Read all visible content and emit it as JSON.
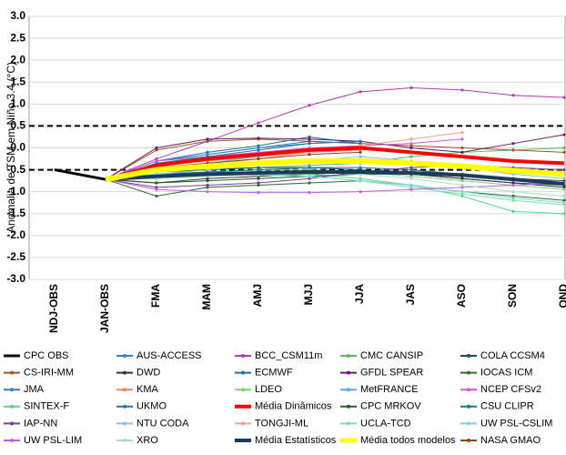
{
  "chart_data": {
    "type": "line",
    "y_label": "Anomalia de TSM em Niño 3.4 (°C)",
    "categories": [
      "NDJ-OBS",
      "JAN-OBS",
      "FMA",
      "MAM",
      "AMJ",
      "MJJ",
      "JJA",
      "JAS",
      "ASO",
      "SON",
      "OND"
    ],
    "ylim": [
      -3.0,
      3.0
    ],
    "yticks": [
      {
        "value": 3,
        "label": "3.0"
      },
      {
        "value": 2.5,
        "label": "2.5"
      },
      {
        "value": 2,
        "label": "2.0"
      },
      {
        "value": 1.5,
        "label": "1.5"
      },
      {
        "value": 1,
        "label": "1.0"
      },
      {
        "value": 0.5,
        "label": "0.5"
      },
      {
        "value": 0,
        "label": "0.0"
      },
      {
        "value": -0.5,
        "label": "-0.5"
      },
      {
        "value": -1,
        "label": "-1.0"
      },
      {
        "value": -1.5,
        "label": "-1.5"
      },
      {
        "value": -2,
        "label": "-2.0"
      },
      {
        "value": -2.5,
        "label": "-2.5"
      },
      {
        "value": -3,
        "label": "-3.0"
      }
    ],
    "grid": true,
    "reference_lines": [
      0.5,
      -0.5
    ],
    "series": [
      {
        "name": "CPC OBS",
        "color": "#000000",
        "width": 3,
        "values": [
          -0.5,
          -0.72,
          null,
          null,
          null,
          null,
          null,
          null,
          null,
          null,
          null
        ]
      },
      {
        "name": "AUS-ACCESS",
        "color": "#2e86c1",
        "width": 1,
        "values": [
          null,
          -0.72,
          -0.3,
          -0.15,
          0.0,
          0.15,
          0.1,
          null,
          null,
          null,
          null
        ]
      },
      {
        "name": "BCC_CSM11m",
        "color": "#b03cb0",
        "width": 1,
        "values": [
          null,
          -0.72,
          -0.25,
          0.15,
          0.57,
          0.97,
          1.28,
          1.37,
          1.32,
          1.2,
          1.15
        ]
      },
      {
        "name": "CMC CANSIP",
        "color": "#5cb85c",
        "width": 1,
        "values": [
          null,
          -0.72,
          -0.6,
          -0.5,
          -0.45,
          -0.4,
          -0.35,
          -0.2,
          -0.1,
          -0.05,
          0.0
        ]
      },
      {
        "name": "COLA CCSM4",
        "color": "#1f4e5f",
        "width": 1,
        "values": [
          null,
          -0.72,
          -0.55,
          -0.5,
          -0.45,
          -0.45,
          -0.5,
          -0.6,
          -0.7,
          -0.8,
          -0.85
        ]
      },
      {
        "name": "CS-IRI-MM",
        "color": "#a0522d",
        "width": 1,
        "values": [
          null,
          -0.72,
          -0.05,
          0.15,
          0.2,
          0.15,
          0.1,
          0.05,
          0.0,
          -0.05,
          -0.1
        ]
      },
      {
        "name": "DWD",
        "color": "#333333",
        "width": 1,
        "values": [
          null,
          -0.72,
          -0.8,
          -0.7,
          -0.65,
          -0.6,
          -0.55,
          -0.6,
          -0.7,
          -0.8,
          -0.9
        ]
      },
      {
        "name": "ECMWF",
        "color": "#1f6fa8",
        "width": 1,
        "values": [
          null,
          -0.72,
          -0.3,
          -0.1,
          0.05,
          0.25,
          0.1,
          null,
          null,
          null,
          null
        ]
      },
      {
        "name": "GFDL SPEAR",
        "color": "#6a1b6a",
        "width": 1,
        "values": [
          null,
          -0.72,
          0.0,
          0.2,
          0.22,
          0.2,
          0.15,
          0.0,
          -0.1,
          0.1,
          0.3
        ]
      },
      {
        "name": "IOCAS ICM",
        "color": "#2e6b2e",
        "width": 1,
        "values": [
          null,
          -0.72,
          -1.1,
          -0.9,
          -0.85,
          -0.8,
          -0.75,
          -0.85,
          -1.0,
          -1.1,
          -1.2
        ]
      },
      {
        "name": "JMA",
        "color": "#3a7fc1",
        "width": 1,
        "values": [
          null,
          -0.72,
          -0.3,
          -0.15,
          0.0,
          0.1,
          0.15,
          null,
          null,
          null,
          null
        ]
      },
      {
        "name": "KMA",
        "color": "#e8835a",
        "width": 1,
        "values": [
          null,
          -0.72,
          -0.4,
          -0.3,
          -0.2,
          -0.1,
          -0.05,
          null,
          null,
          null,
          null
        ]
      },
      {
        "name": "LDEO",
        "color": "#7fcf7f",
        "width": 1,
        "values": [
          null,
          -0.72,
          -0.6,
          -0.55,
          -0.5,
          -0.5,
          -0.55,
          -0.65,
          -0.75,
          -0.85,
          -0.95
        ]
      },
      {
        "name": "MetFRANCE",
        "color": "#5dade2",
        "width": 1,
        "values": [
          null,
          -0.72,
          -0.5,
          -0.35,
          -0.2,
          -0.05,
          0.05,
          null,
          null,
          null,
          null
        ]
      },
      {
        "name": "NCEP CFSv2",
        "color": "#d35cd3",
        "width": 1,
        "values": [
          null,
          -0.72,
          -0.3,
          -0.2,
          -0.1,
          0.0,
          0.05,
          0.1,
          0.2,
          null,
          null
        ]
      },
      {
        "name": "SINTEX-F",
        "color": "#58d68d",
        "width": 1,
        "values": [
          null,
          -0.72,
          -0.7,
          -0.65,
          -0.6,
          -0.6,
          -0.7,
          -0.85,
          -1.1,
          -1.45,
          -1.5
        ]
      },
      {
        "name": "UKMO",
        "color": "#2874a6",
        "width": 1,
        "values": [
          null,
          -0.72,
          -0.35,
          -0.2,
          -0.05,
          0.1,
          0.15,
          null,
          null,
          null,
          null
        ]
      },
      {
        "name": "Média Dinâmicos",
        "color": "#ff0000",
        "width": 4,
        "values": [
          null,
          -0.72,
          -0.4,
          -0.25,
          -0.15,
          -0.05,
          0.0,
          -0.1,
          -0.2,
          -0.3,
          -0.35
        ]
      },
      {
        "name": "CPC MRKOV",
        "color": "#1e5e1e",
        "width": 1,
        "values": [
          null,
          -0.72,
          -0.8,
          -0.75,
          -0.7,
          -0.65,
          -0.6,
          -0.6,
          -0.65,
          -0.7,
          -0.75
        ]
      },
      {
        "name": "CSU CLIPR",
        "color": "#117a8b",
        "width": 1,
        "values": [
          null,
          -0.72,
          -0.6,
          -0.55,
          -0.5,
          -0.45,
          -0.45,
          -0.5,
          -0.6,
          -0.7,
          -0.8
        ]
      },
      {
        "name": "IAP-NN",
        "color": "#7d3c98",
        "width": 1,
        "values": [
          null,
          -0.72,
          -0.9,
          -0.85,
          -0.8,
          -0.7,
          -0.55,
          -0.45,
          -0.4,
          -0.45,
          -0.5
        ]
      },
      {
        "name": "NTU CODA",
        "color": "#85c1e9",
        "width": 1,
        "values": [
          null,
          -0.72,
          -0.6,
          -0.5,
          -0.4,
          -0.3,
          -0.2,
          -0.3,
          -0.45,
          -0.6,
          -0.7
        ]
      },
      {
        "name": "TONGJI-ML",
        "color": "#f5a38a",
        "width": 1,
        "values": [
          null,
          -0.72,
          -0.55,
          -0.4,
          -0.25,
          -0.1,
          0.05,
          0.2,
          0.35,
          null,
          null
        ]
      },
      {
        "name": "UCLA-TCD",
        "color": "#82e0aa",
        "width": 1,
        "values": [
          null,
          -0.72,
          -0.65,
          -0.6,
          -0.6,
          -0.65,
          -0.75,
          -0.9,
          -1.05,
          -1.2,
          -1.3
        ]
      },
      {
        "name": "UW PSL-CSLIM",
        "color": "#76d7ea",
        "width": 1,
        "values": [
          null,
          -0.72,
          -0.6,
          -0.6,
          -0.62,
          -0.65,
          -0.75,
          -0.85,
          -1.0,
          -1.15,
          -1.25
        ]
      },
      {
        "name": "UW PSL-LIM",
        "color": "#c060e0",
        "width": 1,
        "values": [
          null,
          -0.72,
          -0.95,
          -1.0,
          -1.02,
          -1.02,
          -1.0,
          -0.95,
          -0.9,
          -0.85,
          -0.8
        ]
      },
      {
        "name": "XRO",
        "color": "#a9dfbf",
        "width": 1,
        "values": [
          null,
          -0.72,
          -0.7,
          -0.65,
          -0.6,
          -0.55,
          -0.6,
          -0.7,
          -0.85,
          -1.0,
          -1.1
        ]
      },
      {
        "name": "Média Estatísticos",
        "color": "#1b3a5c",
        "width": 4,
        "values": [
          null,
          -0.72,
          -0.65,
          -0.6,
          -0.57,
          -0.55,
          -0.55,
          -0.57,
          -0.62,
          -0.72,
          -0.82
        ]
      },
      {
        "name": "Média todos  modelos",
        "color": "#ffff00",
        "width": 6,
        "values": [
          null,
          -0.72,
          -0.5,
          -0.42,
          -0.35,
          -0.3,
          -0.3,
          -0.35,
          -0.42,
          -0.52,
          -0.6
        ]
      },
      {
        "name": "NASA GMAO",
        "color": "#8b4513",
        "width": 1,
        "values": [
          null,
          -0.72,
          -0.45,
          -0.35,
          -0.25,
          -0.15,
          -0.1,
          null,
          null,
          null,
          null
        ]
      }
    ]
  }
}
